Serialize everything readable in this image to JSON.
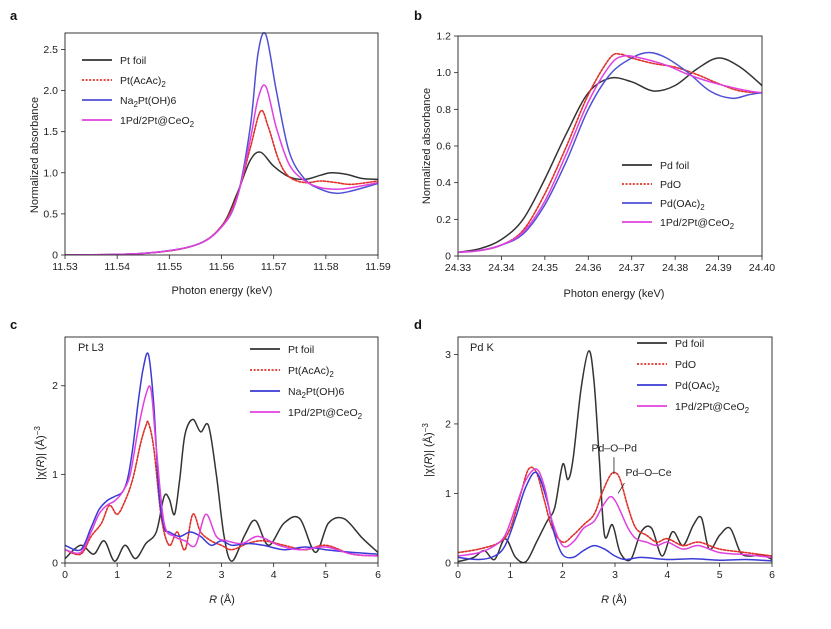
{
  "chart_data": [
    {
      "panel": "a",
      "type": "line",
      "xlabel": "Photon energy (keV)",
      "ylabel": "Normalized absorbance",
      "xlim": [
        11.53,
        11.59
      ],
      "ylim": [
        0,
        2.7
      ],
      "xticks": [
        "11.53",
        "11.54",
        "11.55",
        "11.56",
        "11.57",
        "11.58",
        "11.59"
      ],
      "xtick_values": [
        11.53,
        11.54,
        11.55,
        11.56,
        11.57,
        11.58,
        11.59
      ],
      "yticks": [
        "0",
        "0.5",
        "1.0",
        "1.5",
        "2.0",
        "2.5"
      ],
      "ytick_values": [
        0,
        0.5,
        1.0,
        1.5,
        2.0,
        2.5
      ],
      "legend": [
        {
          "pre": "Pt foil",
          "sub": "",
          "post": ""
        },
        {
          "pre": "Pt(AcAc)",
          "sub": "2",
          "post": ""
        },
        {
          "pre": "Na",
          "sub": "2",
          "post": "Pt(OH)6"
        },
        {
          "pre": "1Pd/2Pt@CeO",
          "sub": "2",
          "post": ""
        }
      ],
      "series": [
        {
          "name": "Pt foil",
          "color": "#333333",
          "dash": "",
          "x": [
            11.53,
            11.545,
            11.555,
            11.56,
            11.563,
            11.5655,
            11.5675,
            11.57,
            11.573,
            11.576,
            11.579,
            11.581,
            11.584,
            11.587,
            11.59
          ],
          "y": [
            0.0,
            0.02,
            0.12,
            0.35,
            0.75,
            1.15,
            1.25,
            1.08,
            0.95,
            0.92,
            0.97,
            1.0,
            0.98,
            0.93,
            0.92
          ]
        },
        {
          "name": "Pt(AcAc)2",
          "color": "#e0302a",
          "dash": "2,1.6",
          "x": [
            11.53,
            11.545,
            11.555,
            11.56,
            11.563,
            11.5655,
            11.5675,
            11.569,
            11.571,
            11.573,
            11.576,
            11.579,
            11.582,
            11.585,
            11.59
          ],
          "y": [
            0.0,
            0.02,
            0.12,
            0.35,
            0.72,
            1.3,
            1.75,
            1.55,
            1.15,
            0.95,
            0.88,
            0.9,
            0.88,
            0.86,
            0.9
          ]
        },
        {
          "name": "Na2Pt(OH)6",
          "color": "#5050d6",
          "dash": "",
          "x": [
            11.53,
            11.545,
            11.555,
            11.56,
            11.563,
            11.5655,
            11.567,
            11.5685,
            11.5705,
            11.573,
            11.576,
            11.579,
            11.582,
            11.585,
            11.59
          ],
          "y": [
            0.0,
            0.02,
            0.12,
            0.34,
            0.7,
            1.55,
            2.45,
            2.68,
            2.0,
            1.25,
            0.92,
            0.8,
            0.75,
            0.78,
            0.87
          ]
        },
        {
          "name": "1Pd/2Pt@CeO2",
          "color": "#e040e0",
          "dash": "",
          "x": [
            11.53,
            11.545,
            11.555,
            11.56,
            11.563,
            11.5655,
            11.567,
            11.5685,
            11.5705,
            11.573,
            11.576,
            11.579,
            11.582,
            11.585,
            11.59
          ],
          "y": [
            0.0,
            0.02,
            0.12,
            0.34,
            0.7,
            1.4,
            1.9,
            2.05,
            1.55,
            1.1,
            0.9,
            0.82,
            0.8,
            0.82,
            0.88
          ]
        }
      ]
    },
    {
      "panel": "b",
      "type": "line",
      "xlabel": "Photon energy (keV)",
      "ylabel": "Normalized absorbance",
      "xlim": [
        24.33,
        24.4
      ],
      "ylim": [
        0,
        1.2
      ],
      "xticks": [
        "24.33",
        "24.34",
        "24.35",
        "24.36",
        "24.37",
        "24.38",
        "24.39",
        "24.40"
      ],
      "xtick_values": [
        24.33,
        24.34,
        24.35,
        24.36,
        24.37,
        24.38,
        24.39,
        24.4
      ],
      "yticks": [
        "0",
        "0.2",
        "0.4",
        "0.6",
        "0.8",
        "1.0",
        "1.2"
      ],
      "ytick_values": [
        0,
        0.2,
        0.4,
        0.6,
        0.8,
        1.0,
        1.2
      ],
      "legend": [
        {
          "pre": "Pd foil",
          "sub": "",
          "post": ""
        },
        {
          "pre": "PdO",
          "sub": "",
          "post": ""
        },
        {
          "pre": "Pd(OAc)",
          "sub": "2",
          "post": ""
        },
        {
          "pre": "1Pd/2Pt@CeO",
          "sub": "2",
          "post": ""
        }
      ],
      "series": [
        {
          "name": "Pd foil",
          "color": "#333333",
          "dash": "",
          "x": [
            24.33,
            24.335,
            24.34,
            24.345,
            24.35,
            24.355,
            24.36,
            24.365,
            24.37,
            24.375,
            24.38,
            24.385,
            24.39,
            24.395,
            24.4
          ],
          "y": [
            0.02,
            0.04,
            0.09,
            0.2,
            0.42,
            0.67,
            0.89,
            0.97,
            0.95,
            0.9,
            0.93,
            1.02,
            1.08,
            1.03,
            0.93
          ]
        },
        {
          "name": "PdO",
          "color": "#e0302a",
          "dash": "2,1.6",
          "x": [
            24.33,
            24.335,
            24.34,
            24.345,
            24.35,
            24.355,
            24.36,
            24.365,
            24.3675,
            24.37,
            24.375,
            24.38,
            24.385,
            24.39,
            24.395,
            24.4
          ],
          "y": [
            0.02,
            0.03,
            0.06,
            0.14,
            0.34,
            0.6,
            0.88,
            1.08,
            1.1,
            1.08,
            1.05,
            1.03,
            0.99,
            0.94,
            0.9,
            0.89
          ]
        },
        {
          "name": "Pd(OAc)2",
          "color": "#5050d6",
          "dash": "",
          "x": [
            24.33,
            24.335,
            24.34,
            24.345,
            24.35,
            24.355,
            24.36,
            24.365,
            24.37,
            24.374,
            24.378,
            24.383,
            24.388,
            24.393,
            24.397,
            24.4
          ],
          "y": [
            0.02,
            0.03,
            0.06,
            0.12,
            0.28,
            0.52,
            0.8,
            0.99,
            1.08,
            1.11,
            1.08,
            1.0,
            0.9,
            0.86,
            0.88,
            0.89
          ]
        },
        {
          "name": "1Pd/2Pt@CeO2",
          "color": "#e040e0",
          "dash": "",
          "x": [
            24.33,
            24.335,
            24.34,
            24.345,
            24.35,
            24.355,
            24.36,
            24.365,
            24.368,
            24.372,
            24.378,
            24.383,
            24.388,
            24.393,
            24.397,
            24.4
          ],
          "y": [
            0.02,
            0.03,
            0.06,
            0.13,
            0.3,
            0.56,
            0.84,
            1.04,
            1.09,
            1.08,
            1.04,
            0.99,
            0.95,
            0.92,
            0.9,
            0.89
          ]
        }
      ]
    },
    {
      "panel": "c",
      "type": "line",
      "inset_label": "Pt L3",
      "xlabel": "R (Å)",
      "ylabel": "|χ(R)| (Å)−3",
      "xlim": [
        0,
        6
      ],
      "ylim": [
        0,
        2.55
      ],
      "xticks": [
        "0",
        "1",
        "2",
        "3",
        "4",
        "5",
        "6"
      ],
      "xtick_values": [
        0,
        1,
        2,
        3,
        4,
        5,
        6
      ],
      "yticks": [
        "0",
        "1",
        "2"
      ],
      "ytick_values": [
        0,
        1,
        2
      ],
      "legend": [
        {
          "pre": "Pt foil",
          "sub": "",
          "post": ""
        },
        {
          "pre": "Pt(AcAc)",
          "sub": "2",
          "post": ""
        },
        {
          "pre": "Na",
          "sub": "2",
          "post": "Pt(OH)6"
        },
        {
          "pre": "1Pd/2Pt@CeO",
          "sub": "2",
          "post": ""
        }
      ],
      "series": [
        {
          "name": "Pt foil",
          "color": "#333333",
          "dash": "",
          "x": [
            0,
            0.3,
            0.55,
            0.75,
            0.95,
            1.15,
            1.35,
            1.55,
            1.75,
            1.9,
            2.0,
            2.1,
            2.2,
            2.3,
            2.45,
            2.6,
            2.75,
            2.9,
            3.05,
            3.2,
            3.45,
            3.65,
            3.9,
            4.2,
            4.5,
            4.8,
            5.05,
            5.35,
            5.7,
            6.0
          ],
          "y": [
            0.05,
            0.2,
            0.1,
            0.25,
            0.02,
            0.2,
            0.05,
            0.22,
            0.35,
            0.75,
            0.72,
            0.55,
            0.95,
            1.45,
            1.62,
            1.48,
            1.55,
            1.0,
            0.3,
            0.02,
            0.32,
            0.48,
            0.2,
            0.45,
            0.5,
            0.12,
            0.45,
            0.5,
            0.28,
            0.12
          ]
        },
        {
          "name": "Pt(AcAc)2",
          "color": "#e0302a",
          "dash": "2,1.6",
          "x": [
            0,
            0.3,
            0.5,
            0.7,
            0.85,
            1.0,
            1.15,
            1.3,
            1.45,
            1.55,
            1.6,
            1.7,
            1.85,
            2.0,
            2.15,
            2.3,
            2.45,
            2.6,
            2.8,
            3.0,
            3.2,
            3.5,
            3.8,
            4.2,
            4.6,
            5.0,
            5.5,
            6.0
          ],
          "y": [
            0.15,
            0.1,
            0.3,
            0.45,
            0.65,
            0.55,
            0.7,
            0.95,
            1.35,
            1.55,
            1.58,
            1.3,
            0.5,
            0.2,
            0.35,
            0.15,
            0.55,
            0.35,
            0.25,
            0.2,
            0.15,
            0.22,
            0.25,
            0.2,
            0.15,
            0.2,
            0.1,
            0.08
          ]
        },
        {
          "name": "Na2Pt(OH)6",
          "color": "#3a3ad6",
          "dash": "",
          "x": [
            0,
            0.3,
            0.5,
            0.65,
            0.8,
            0.95,
            1.1,
            1.2,
            1.3,
            1.4,
            1.5,
            1.6,
            1.7,
            1.8,
            1.9,
            2.0,
            2.2,
            2.4,
            2.6,
            2.8,
            3.0,
            3.2,
            3.5,
            3.8,
            4.2,
            4.6,
            5.0,
            5.5,
            6.0
          ],
          "y": [
            0.2,
            0.15,
            0.4,
            0.6,
            0.7,
            0.75,
            0.8,
            0.95,
            1.3,
            1.8,
            2.2,
            2.35,
            1.8,
            0.8,
            0.4,
            0.35,
            0.3,
            0.35,
            0.3,
            0.2,
            0.25,
            0.2,
            0.22,
            0.2,
            0.15,
            0.18,
            0.15,
            0.12,
            0.1
          ]
        },
        {
          "name": "1Pd/2Pt@CeO2",
          "color": "#e040e0",
          "dash": "",
          "x": [
            0,
            0.3,
            0.5,
            0.65,
            0.8,
            0.95,
            1.1,
            1.25,
            1.4,
            1.55,
            1.65,
            1.75,
            1.9,
            2.1,
            2.3,
            2.5,
            2.7,
            2.9,
            3.1,
            3.4,
            3.7,
            4.1,
            4.5,
            5.0,
            5.5,
            6.0
          ],
          "y": [
            0.15,
            0.12,
            0.35,
            0.55,
            0.65,
            0.7,
            0.8,
            1.0,
            1.5,
            1.9,
            1.95,
            1.3,
            0.45,
            0.3,
            0.25,
            0.2,
            0.55,
            0.3,
            0.25,
            0.22,
            0.3,
            0.2,
            0.15,
            0.18,
            0.1,
            0.08
          ]
        }
      ]
    },
    {
      "panel": "d",
      "type": "line",
      "inset_label": "Pd K",
      "xlabel": "R (Å)",
      "ylabel": "|χ(R)| (Å)−3",
      "xlim": [
        0,
        6
      ],
      "ylim": [
        0,
        3.25
      ],
      "xticks": [
        "0",
        "1",
        "2",
        "3",
        "4",
        "5",
        "6"
      ],
      "xtick_values": [
        0,
        1,
        2,
        3,
        4,
        5,
        6
      ],
      "yticks": [
        "0",
        "1",
        "2",
        "3"
      ],
      "ytick_values": [
        0,
        1,
        2,
        3
      ],
      "legend": [
        {
          "pre": "Pd foil",
          "sub": "",
          "post": ""
        },
        {
          "pre": "PdO",
          "sub": "",
          "post": ""
        },
        {
          "pre": "Pd(OAc)",
          "sub": "2",
          "post": ""
        },
        {
          "pre": "1Pd/2Pt@CeO",
          "sub": "2",
          "post": ""
        }
      ],
      "annotations": [
        {
          "text": "Pd–O–Pd",
          "x": 2.55,
          "y": 1.6
        },
        {
          "text": "Pd–O–Ce",
          "x": 3.2,
          "y": 1.25
        }
      ],
      "series": [
        {
          "name": "Pd foil",
          "color": "#333333",
          "dash": "",
          "x": [
            0,
            0.3,
            0.5,
            0.7,
            0.9,
            1.1,
            1.3,
            1.5,
            1.7,
            1.85,
            2.0,
            2.1,
            2.2,
            2.35,
            2.5,
            2.6,
            2.7,
            2.8,
            2.95,
            3.1,
            3.3,
            3.5,
            3.7,
            3.9,
            4.1,
            4.3,
            4.5,
            4.65,
            4.8,
            5.0,
            5.2,
            5.4,
            5.6,
            5.8,
            6.0
          ],
          "y": [
            0.02,
            0.08,
            0.18,
            0.05,
            0.35,
            0.08,
            0.02,
            0.3,
            0.6,
            0.8,
            1.42,
            1.2,
            1.5,
            2.5,
            3.05,
            2.6,
            1.5,
            0.4,
            0.55,
            0.15,
            0.05,
            0.45,
            0.5,
            0.1,
            0.45,
            0.25,
            0.55,
            0.65,
            0.2,
            0.4,
            0.5,
            0.15,
            0.1,
            0.12,
            0.05
          ]
        },
        {
          "name": "PdO",
          "color": "#e0302a",
          "dash": "2,1.6",
          "x": [
            0,
            0.4,
            0.8,
            1.0,
            1.2,
            1.35,
            1.5,
            1.65,
            1.8,
            2.0,
            2.2,
            2.4,
            2.6,
            2.75,
            2.9,
            3.0,
            3.1,
            3.25,
            3.4,
            3.6,
            3.8,
            4.0,
            4.3,
            4.6,
            5.0,
            5.5,
            6.0
          ],
          "y": [
            0.15,
            0.2,
            0.3,
            0.5,
            1.0,
            1.35,
            1.3,
            0.9,
            0.5,
            0.3,
            0.4,
            0.55,
            0.7,
            1.0,
            1.25,
            1.3,
            1.2,
            0.8,
            0.5,
            0.4,
            0.3,
            0.35,
            0.25,
            0.3,
            0.2,
            0.15,
            0.1
          ]
        },
        {
          "name": "Pd(OAc)2",
          "color": "#3a3ad6",
          "dash": "",
          "x": [
            0,
            0.4,
            0.7,
            0.9,
            1.1,
            1.3,
            1.5,
            1.7,
            1.85,
            2.0,
            2.2,
            2.4,
            2.6,
            2.8,
            3.0,
            3.2,
            3.5,
            4.0,
            4.5,
            5.0,
            5.5,
            6.0
          ],
          "y": [
            0.08,
            0.05,
            0.1,
            0.25,
            0.65,
            1.1,
            1.3,
            0.9,
            0.4,
            0.12,
            0.08,
            0.18,
            0.25,
            0.2,
            0.1,
            0.05,
            0.08,
            0.05,
            0.06,
            0.04,
            0.05,
            0.03
          ]
        },
        {
          "name": "1Pd/2Pt@CeO2",
          "color": "#e040e0",
          "dash": "",
          "x": [
            0,
            0.4,
            0.7,
            0.9,
            1.1,
            1.3,
            1.5,
            1.65,
            1.8,
            2.0,
            2.2,
            2.4,
            2.6,
            2.75,
            2.9,
            3.0,
            3.1,
            3.25,
            3.4,
            3.6,
            3.8,
            4.0,
            4.3,
            4.6,
            5.0,
            5.5,
            6.0
          ],
          "y": [
            0.1,
            0.15,
            0.25,
            0.4,
            0.8,
            1.2,
            1.35,
            1.1,
            0.6,
            0.25,
            0.3,
            0.5,
            0.6,
            0.8,
            0.95,
            0.9,
            0.75,
            0.5,
            0.35,
            0.3,
            0.25,
            0.3,
            0.2,
            0.25,
            0.15,
            0.12,
            0.08
          ]
        }
      ]
    }
  ]
}
